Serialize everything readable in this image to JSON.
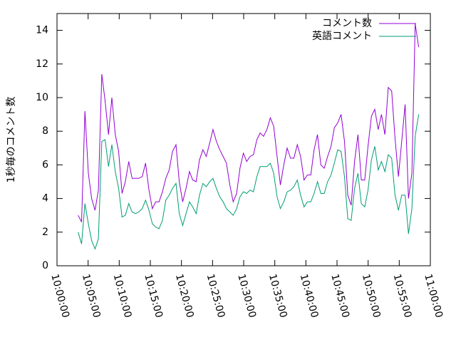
{
  "chart_data": {
    "type": "line",
    "y_label": "1秒毎のコメント数",
    "x": [
      "10:03:24",
      "10:03:57",
      "10:04:29",
      "10:05:02",
      "10:05:34",
      "10:06:07",
      "10:06:39",
      "10:07:12",
      "10:07:44",
      "10:08:17",
      "10:08:49",
      "10:09:22",
      "10:09:54",
      "10:10:27",
      "10:10:59",
      "10:11:32",
      "10:12:04",
      "10:12:37",
      "10:13:09",
      "10:13:42",
      "10:14:14",
      "10:14:47",
      "10:15:19",
      "10:15:52",
      "10:16:24",
      "10:16:57",
      "10:17:29",
      "10:18:02",
      "10:18:34",
      "10:19:07",
      "10:19:39",
      "10:20:12",
      "10:20:44",
      "10:21:17",
      "10:21:49",
      "10:22:22",
      "10:22:54",
      "10:23:27",
      "10:23:59",
      "10:24:32",
      "10:25:04",
      "10:25:37",
      "10:26:09",
      "10:26:42",
      "10:27:14",
      "10:27:47",
      "10:28:19",
      "10:28:52",
      "10:29:24",
      "10:29:57",
      "10:30:29",
      "10:31:02",
      "10:31:34",
      "10:32:07",
      "10:32:39",
      "10:33:12",
      "10:33:44",
      "10:34:17",
      "10:34:49",
      "10:35:22",
      "10:35:54",
      "10:36:27",
      "10:36:59",
      "10:37:32",
      "10:38:04",
      "10:38:37",
      "10:39:09",
      "10:39:42",
      "10:40:14",
      "10:40:47",
      "10:41:19",
      "10:41:52",
      "10:42:24",
      "10:42:57",
      "10:43:29",
      "10:44:02",
      "10:44:34",
      "10:45:07",
      "10:45:39",
      "10:46:12",
      "10:46:44",
      "10:47:17",
      "10:47:49",
      "10:48:22",
      "10:48:54",
      "10:49:27",
      "10:49:59",
      "10:50:32",
      "10:51:04",
      "10:51:37",
      "10:52:09",
      "10:52:42",
      "10:53:14",
      "10:53:47",
      "10:54:19",
      "10:54:52",
      "10:55:24",
      "10:55:57",
      "10:56:29",
      "10:57:02",
      "10:57:34",
      "10:58:07"
    ],
    "series": [
      {
        "name": "コメント数",
        "color": "#9400d3",
        "values": [
          3.0,
          2.6,
          9.2,
          5.5,
          4.0,
          3.3,
          4.5,
          11.4,
          9.8,
          7.8,
          10.0,
          7.8,
          6.8,
          4.3,
          5.0,
          6.2,
          5.2,
          5.2,
          5.2,
          5.3,
          6.1,
          4.5,
          3.4,
          3.8,
          3.8,
          4.4,
          5.2,
          5.7,
          6.8,
          7.2,
          5.0,
          3.8,
          4.6,
          5.6,
          5.1,
          5.0,
          6.3,
          6.9,
          6.5,
          7.3,
          8.1,
          7.4,
          6.9,
          6.5,
          6.1,
          4.8,
          3.8,
          4.3,
          5.8,
          6.7,
          6.2,
          6.5,
          6.6,
          7.5,
          7.9,
          7.7,
          8.1,
          8.8,
          8.3,
          6.5,
          4.8,
          6.0,
          7.0,
          6.4,
          6.4,
          7.2,
          6.5,
          5.1,
          5.4,
          5.4,
          6.9,
          7.8,
          6.0,
          5.8,
          6.5,
          7.1,
          8.2,
          8.5,
          9.0,
          7.4,
          4.2,
          3.6,
          6.2,
          7.8,
          5.1,
          5.1,
          7.1,
          8.9,
          9.3,
          8.1,
          9.0,
          7.8,
          10.6,
          10.4,
          7.6,
          5.3,
          7.4,
          9.6,
          4.0,
          5.5,
          14.4,
          13.0
        ]
      },
      {
        "name": "英語コメント",
        "color": "#009e73",
        "values": [
          2.0,
          1.3,
          3.7,
          2.5,
          1.5,
          1.0,
          1.6,
          7.4,
          7.5,
          5.9,
          7.2,
          5.6,
          4.6,
          2.9,
          3.0,
          3.7,
          3.2,
          3.1,
          3.2,
          3.4,
          3.9,
          3.3,
          2.5,
          2.3,
          2.2,
          2.7,
          3.9,
          4.2,
          4.6,
          4.9,
          3.1,
          2.4,
          3.1,
          3.8,
          3.5,
          3.1,
          4.2,
          4.9,
          4.7,
          5.0,
          5.2,
          4.6,
          4.1,
          3.8,
          3.4,
          3.2,
          3.0,
          3.4,
          4.1,
          4.4,
          4.3,
          4.5,
          4.4,
          5.3,
          5.9,
          5.9,
          5.9,
          6.1,
          5.5,
          4.1,
          3.4,
          3.8,
          4.4,
          4.5,
          4.7,
          5.1,
          4.2,
          3.5,
          3.8,
          3.8,
          4.3,
          5.0,
          4.3,
          4.3,
          5.0,
          5.4,
          6.1,
          6.9,
          6.8,
          5.3,
          2.8,
          2.7,
          4.6,
          5.5,
          3.7,
          3.5,
          4.5,
          6.3,
          7.1,
          5.7,
          6.2,
          5.6,
          6.6,
          6.4,
          4.2,
          3.3,
          4.2,
          4.2,
          1.9,
          3.4,
          7.7,
          9.0
        ]
      }
    ],
    "xlim": [
      "10:00:00",
      "11:00:00"
    ],
    "xticks": [
      "10:00:00",
      "10:05:00",
      "10:10:00",
      "10:15:00",
      "10:20:00",
      "10:25:00",
      "10:30:00",
      "10:35:00",
      "10:40:00",
      "10:45:00",
      "10:50:00",
      "10:55:00",
      "11:00:00"
    ],
    "ylim": [
      0,
      15
    ],
    "yticks": [
      0,
      2,
      4,
      6,
      8,
      10,
      12,
      14
    ],
    "grid": false,
    "legend": "top-right"
  }
}
